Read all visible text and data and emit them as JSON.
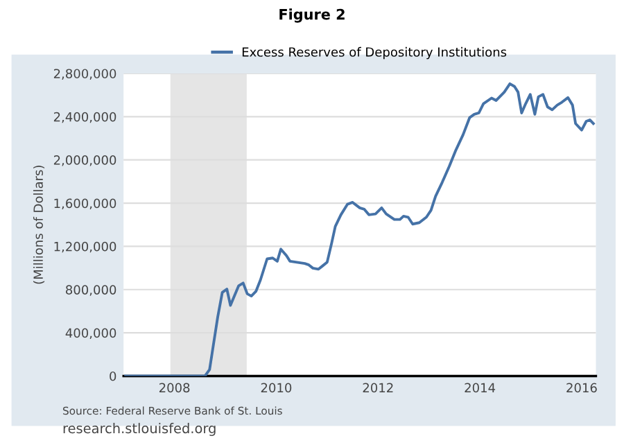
{
  "chart_data": {
    "type": "line",
    "title": "Figure 2",
    "ylabel": "(Millions of Dollars)",
    "annotations": [
      "Source: Federal Reserve Bank of St. Louis",
      "research.stlouisfed.org"
    ],
    "x": [
      2007.04,
      2008.6,
      2008.69,
      2008.85,
      2008.94,
      2009.03,
      2009.1,
      2009.26,
      2009.35,
      2009.43,
      2009.51,
      2009.6,
      2009.69,
      2009.82,
      2009.93,
      2010.02,
      2010.09,
      2010.2,
      2010.27,
      2010.56,
      2010.64,
      2010.72,
      2010.83,
      2010.91,
      2011.0,
      2011.09,
      2011.16,
      2011.27,
      2011.4,
      2011.5,
      2011.64,
      2011.73,
      2011.82,
      2011.95,
      2012.07,
      2012.16,
      2012.32,
      2012.43,
      2012.5,
      2012.59,
      2012.68,
      2012.81,
      2012.95,
      2013.04,
      2013.13,
      2013.26,
      2013.4,
      2013.53,
      2013.67,
      2013.8,
      2013.89,
      2013.98,
      2014.07,
      2014.23,
      2014.32,
      2014.48,
      2014.59,
      2014.68,
      2014.75,
      2014.82,
      2014.9,
      2014.99,
      2015.08,
      2015.15,
      2015.24,
      2015.33,
      2015.42,
      2015.52,
      2015.61,
      2015.73,
      2015.82,
      2015.88,
      2016.0,
      2016.09,
      2016.16,
      2016.23
    ],
    "series": [
      {
        "name": "Excess Reserves of Depository Institutions",
        "color": "#4572a7",
        "values": [
          0,
          0,
          60000,
          546000,
          774000,
          804000,
          654000,
          834000,
          860000,
          761000,
          740000,
          783000,
          890000,
          1084000,
          1092000,
          1062000,
          1174000,
          1114000,
          1062000,
          1041000,
          1028000,
          998000,
          989000,
          1019000,
          1054000,
          1234000,
          1385000,
          1492000,
          1590000,
          1607000,
          1556000,
          1543000,
          1492000,
          1500000,
          1556000,
          1500000,
          1449000,
          1449000,
          1479000,
          1470000,
          1406000,
          1419000,
          1470000,
          1534000,
          1663000,
          1792000,
          1942000,
          2092000,
          2233000,
          2392000,
          2422000,
          2434000,
          2520000,
          2572000,
          2550000,
          2627000,
          2704000,
          2679000,
          2627000,
          2434000,
          2520000,
          2606000,
          2422000,
          2584000,
          2606000,
          2490000,
          2464000,
          2507000,
          2533000,
          2576000,
          2507000,
          2336000,
          2276000,
          2357000,
          2370000,
          2336000
        ]
      }
    ],
    "bands": [
      {
        "axis": "x",
        "from": 2007.92,
        "to": 2009.42,
        "color": "#e5e5e5"
      }
    ],
    "xlim": [
      2007.0,
      2016.28
    ],
    "xticks": [
      2008,
      2010,
      2012,
      2014,
      2016
    ],
    "ylim": [
      0,
      2800000
    ],
    "yticks": [
      0,
      {
        "value": 400000,
        "label": "400,000"
      },
      {
        "value": 800000,
        "label": "800,000"
      },
      {
        "value": 1200000,
        "label": "1,200,000"
      },
      {
        "value": 1600000,
        "label": "1,600,000"
      },
      {
        "value": 2000000,
        "label": "2,000,000"
      },
      {
        "value": 2400000,
        "label": "2,400,000"
      },
      {
        "value": 2800000,
        "label": "2,800,000"
      }
    ],
    "grid": "y",
    "legend": "top",
    "marker": "none",
    "line_style": "solid"
  }
}
